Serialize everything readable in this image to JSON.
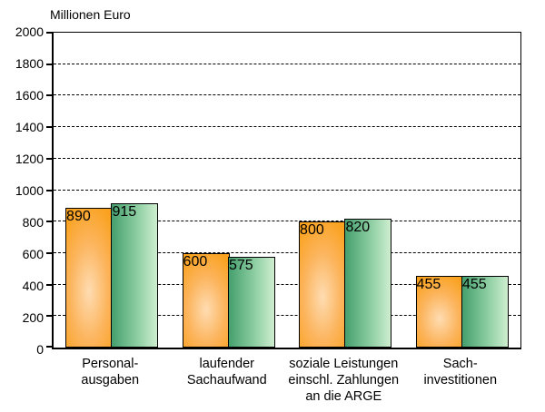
{
  "chart_data": {
    "type": "bar",
    "title": "Millionen Euro",
    "categories": [
      "Personal-ausgaben",
      "laufender Sachaufwand",
      "soziale Leistungen einschl. Zahlungen an die ARGE",
      "Sach-investitionen"
    ],
    "category_lines": [
      [
        "Personal-",
        "ausgaben"
      ],
      [
        "laufender",
        "Sachaufwand"
      ],
      [
        "soziale Leistungen",
        "einschl. Zahlungen",
        "an die ARGE"
      ],
      [
        "Sach-",
        "investitionen"
      ]
    ],
    "series": [
      {
        "name": "orange",
        "color": "#FAA21F",
        "values": [
          890,
          600,
          800,
          455
        ]
      },
      {
        "name": "green",
        "color": "#55AA7A",
        "values": [
          915,
          575,
          820,
          455
        ]
      }
    ],
    "ylim": [
      0,
      2000
    ],
    "ytick_step": 200,
    "xlabel": "",
    "ylabel": "Millionen Euro",
    "grid": "dashed-horizontal",
    "legend": "none"
  },
  "colors": {
    "background": "#FFFFFF",
    "axis": "#000000",
    "orange_edge": "#FAA21F",
    "orange_mid": "#FCB45C",
    "orange_center": "#FEDCB2",
    "green_dark": "#459F6E",
    "green_mid": "#8BCDA0",
    "green_light": "#CFEED0"
  }
}
